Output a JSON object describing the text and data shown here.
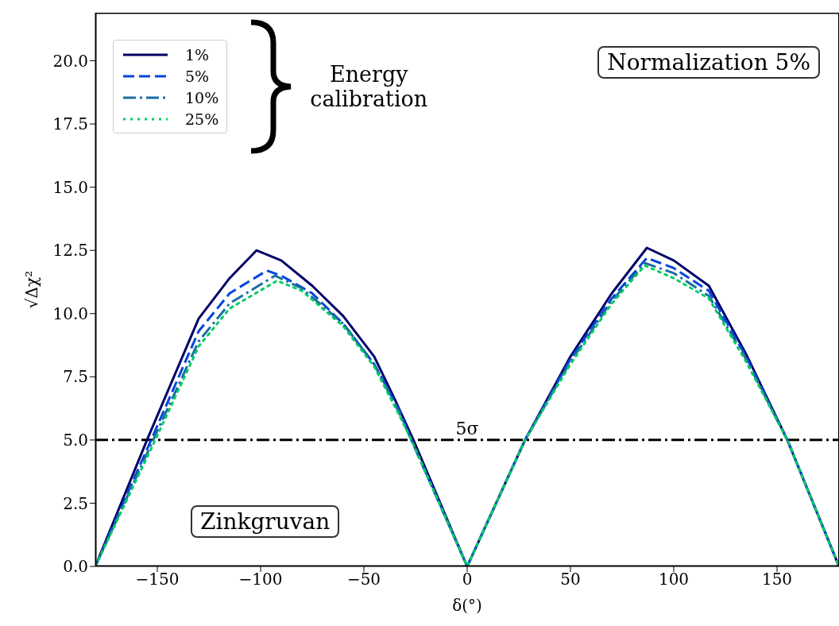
{
  "chart_data": {
    "type": "line",
    "xlabel": "δ(°)",
    "ylabel": "√Δχ²",
    "xlim": [
      -180,
      180
    ],
    "xticks": [
      -150,
      -100,
      -50,
      0,
      50,
      100,
      150
    ],
    "ylim": [
      0,
      21.9
    ],
    "yticks": [
      {
        "value": 0,
        "label": "0.0"
      },
      2.5,
      {
        "value": 5,
        "label": "5.0"
      },
      7.5,
      {
        "value": 10,
        "label": "10.0"
      },
      12.5,
      {
        "value": 15,
        "label": "15.0"
      },
      17.5,
      {
        "value": 20,
        "label": "20.0"
      }
    ],
    "legend": "top left",
    "marker": "none",
    "series": [
      {
        "name": "1%",
        "color": "#000066",
        "line_style": "solid",
        "x": [
          -180,
          -155,
          -130,
          -115,
          -102,
          -90,
          -75,
          -60,
          -45,
          -35,
          -26,
          0,
          28,
          50,
          70,
          87,
          100,
          117,
          135,
          155,
          180
        ],
        "values": [
          0,
          5.0,
          9.8,
          11.4,
          12.5,
          12.1,
          11.1,
          9.9,
          8.3,
          6.6,
          5.0,
          0,
          5.0,
          8.3,
          10.8,
          12.6,
          12.1,
          11.1,
          8.4,
          5.0,
          0
        ]
      },
      {
        "name": "5%",
        "color": "#0044dd",
        "line_style": "dashed",
        "x": [
          -180,
          -153,
          -130,
          -115,
          -97,
          -90,
          -75,
          -60,
          -45,
          -33,
          -27,
          0,
          28,
          50,
          70,
          87,
          100,
          117,
          135,
          155,
          180
        ],
        "values": [
          0,
          5.0,
          9.3,
          10.8,
          11.7,
          11.5,
          10.8,
          9.6,
          8.0,
          6.2,
          5.0,
          0,
          5.0,
          8.2,
          10.6,
          12.2,
          11.8,
          10.9,
          8.3,
          5.0,
          0
        ]
      },
      {
        "name": "10%",
        "color": "#1a6e9e",
        "line_style": "dashdot",
        "x": [
          -180,
          -152,
          -130,
          -115,
          -93,
          -80,
          -60,
          -45,
          -33,
          -27,
          0,
          28,
          50,
          70,
          86,
          100,
          117,
          135,
          155,
          180
        ],
        "values": [
          0,
          5.0,
          8.9,
          10.4,
          11.5,
          11.0,
          9.6,
          8.0,
          6.1,
          5.0,
          0,
          5.0,
          8.1,
          10.5,
          12.0,
          11.6,
          10.7,
          8.2,
          5.0,
          0
        ]
      },
      {
        "name": "25%",
        "color": "#00cc66",
        "line_style": "dotted",
        "x": [
          -180,
          -151,
          -130,
          -115,
          -92,
          -80,
          -60,
          -45,
          -33,
          -27,
          0,
          28,
          50,
          70,
          86,
          100,
          117,
          135,
          155,
          180
        ],
        "values": [
          0,
          5.0,
          8.7,
          10.2,
          11.3,
          10.9,
          9.5,
          7.9,
          6.0,
          5.0,
          0,
          5.0,
          8.0,
          10.4,
          11.9,
          11.4,
          10.6,
          8.1,
          5.0,
          0
        ]
      }
    ],
    "ref_lines": [
      {
        "axis": "y",
        "value": 5,
        "label": "5σ",
        "color": "#000000",
        "line_style": "dashdot"
      }
    ],
    "legend_title": "Energy calibration",
    "annotations": [
      "Normalization 5%",
      "Zinkgruvan"
    ]
  }
}
